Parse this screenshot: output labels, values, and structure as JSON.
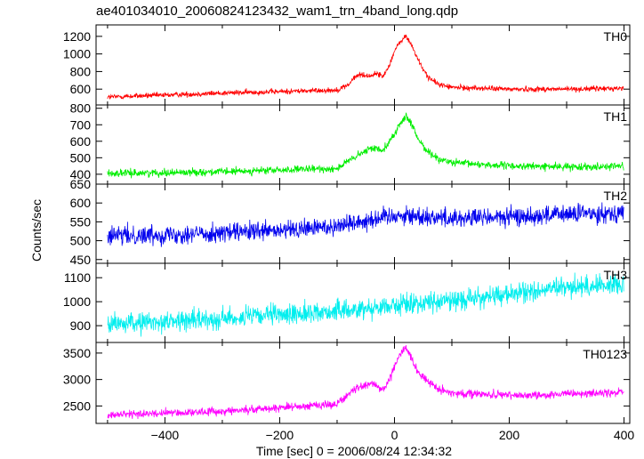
{
  "chart_data": {
    "type": "line",
    "title": "ae401034010_20060824123432_wam1_trn_4band_long.qdp",
    "xlabel": "Time [sec] 0 = 2006/08/24 12:34:32",
    "ylabel": "Counts/sec",
    "xlim": [
      -520,
      410
    ],
    "x_ticks": [
      -400,
      -200,
      0,
      200,
      400
    ],
    "x_tick_labels": [
      "−400",
      "−200",
      "0",
      "200",
      "400"
    ],
    "x_range_of_data": [
      -500,
      400
    ],
    "legend": "none",
    "grid": false,
    "panels": [
      {
        "name": "TH0",
        "color": "#ff0000",
        "ylim": [
          420,
          1330
        ],
        "y_ticks": [
          600,
          800,
          1000,
          1200
        ],
        "y_tick_labels": [
          "600",
          "800",
          "1000",
          "1200"
        ],
        "shape_x": [
          -500,
          -300,
          -100,
          -80,
          -70,
          -60,
          -50,
          -40,
          -30,
          -20,
          -10,
          0,
          10,
          20,
          30,
          40,
          50,
          60,
          70,
          80,
          100,
          150,
          200,
          300,
          400
        ],
        "shape_y": [
          510,
          555,
          590,
          650,
          730,
          770,
          750,
          755,
          780,
          740,
          860,
          1030,
          1140,
          1200,
          1100,
          950,
          820,
          730,
          680,
          650,
          620,
          610,
          600,
          600,
          610
        ],
        "noise": 22
      },
      {
        "name": "TH1",
        "color": "#00ee00",
        "ylim": [
          340,
          820
        ],
        "y_ticks": [
          400,
          500,
          600,
          700,
          800
        ],
        "y_tick_labels": [
          "400",
          "500",
          "600",
          "700",
          "800"
        ],
        "shape_x": [
          -500,
          -300,
          -100,
          -80,
          -60,
          -40,
          -20,
          0,
          10,
          20,
          30,
          40,
          60,
          80,
          100,
          200,
          300,
          400
        ],
        "shape_y": [
          405,
          415,
          435,
          480,
          520,
          560,
          550,
          640,
          710,
          750,
          700,
          620,
          530,
          490,
          470,
          450,
          445,
          450
        ],
        "noise": 16
      },
      {
        "name": "TH2",
        "color": "#0000ee",
        "ylim": [
          440,
          650
        ],
        "y_ticks": [
          450,
          500,
          550,
          600,
          650
        ],
        "y_tick_labels": [
          "450",
          "500",
          "550",
          "600",
          "650"
        ],
        "shape_x": [
          -500,
          -200,
          -100,
          0,
          100,
          200,
          300,
          400
        ],
        "shape_y": [
          512,
          525,
          540,
          568,
          560,
          562,
          570,
          575
        ],
        "noise": 18
      },
      {
        "name": "TH3",
        "color": "#00eeee",
        "ylim": [
          830,
          1160
        ],
        "y_ticks": [
          900,
          1000,
          1100
        ],
        "y_tick_labels": [
          "900",
          "1000",
          "1100"
        ],
        "shape_x": [
          -500,
          -300,
          -100,
          0,
          100,
          200,
          300,
          400
        ],
        "shape_y": [
          905,
          930,
          960,
          985,
          1005,
          1030,
          1060,
          1075
        ],
        "noise": 30
      },
      {
        "name": "TH0123",
        "color": "#ff00ff",
        "ylim": [
          2170,
          3700
        ],
        "y_ticks": [
          2500,
          3000,
          3500
        ],
        "y_tick_labels": [
          "2500",
          "3000",
          "3500"
        ],
        "shape_x": [
          -500,
          -300,
          -100,
          -80,
          -60,
          -40,
          -30,
          -20,
          -10,
          0,
          10,
          20,
          30,
          40,
          60,
          80,
          100,
          150,
          200,
          300,
          400
        ],
        "shape_y": [
          2330,
          2400,
          2540,
          2720,
          2880,
          2930,
          2860,
          2820,
          2950,
          3250,
          3500,
          3600,
          3400,
          3150,
          2950,
          2800,
          2750,
          2720,
          2700,
          2720,
          2760
        ],
        "noise": 55
      }
    ]
  }
}
